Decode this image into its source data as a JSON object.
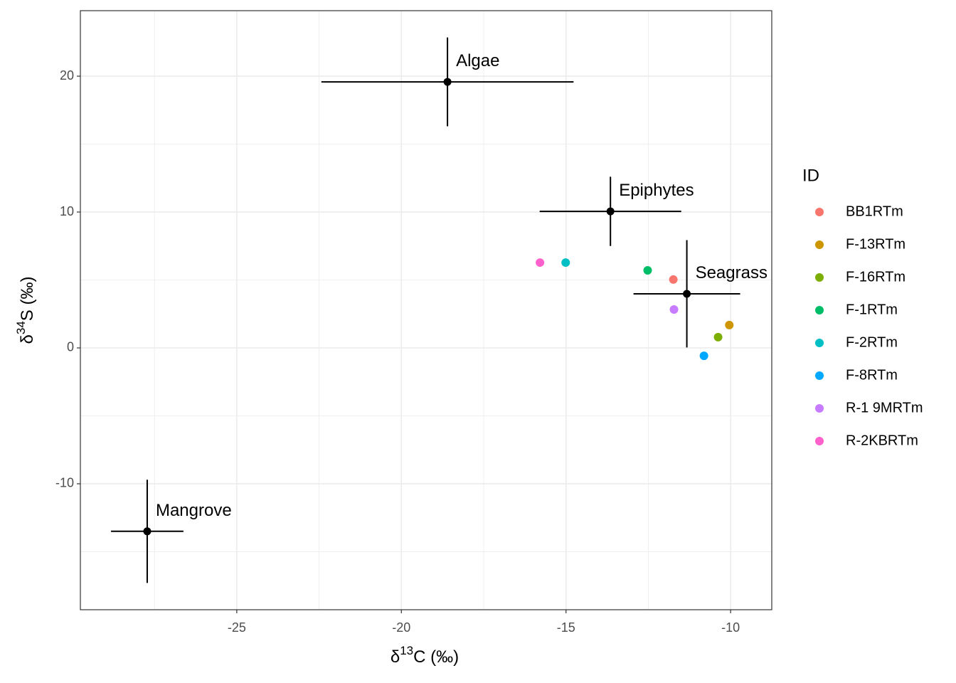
{
  "chart_data": {
    "type": "scatter",
    "xlabel": {
      "prefix": "δ",
      "sup": "13",
      "suffix": "C (‰)"
    },
    "ylabel": {
      "prefix": "δ",
      "sup": "34",
      "suffix": "S (‰)"
    },
    "xlim": [
      -29.75,
      -8.75
    ],
    "ylim": [
      -19.27,
      24.82
    ],
    "xticks": [
      -25,
      -20,
      -15,
      -10
    ],
    "yticks": [
      -10,
      0,
      10,
      20
    ],
    "grid": true,
    "legend_title": "ID",
    "legend_position": "right",
    "sources": {
      "color": "#000000",
      "labels": [
        "Algae",
        "Epiphytes",
        "Seagrass",
        "Mangrove"
      ],
      "x": [
        -18.6,
        -13.65,
        -11.33,
        -27.72
      ],
      "y": [
        19.58,
        10.05,
        3.98,
        -13.5
      ],
      "xerr": [
        3.83,
        2.15,
        1.62,
        1.1
      ],
      "yerr": [
        3.27,
        2.55,
        3.95,
        3.8
      ]
    },
    "series": [
      {
        "name": "BB1RTm",
        "color": "#F8766D",
        "x": [
          -11.74
        ],
        "y": [
          5.03
        ]
      },
      {
        "name": "F-13RTm",
        "color": "#CD9600",
        "x": [
          -10.04
        ],
        "y": [
          1.68
        ]
      },
      {
        "name": "F-16RTm",
        "color": "#7CAE00",
        "x": [
          -10.38
        ],
        "y": [
          0.79
        ]
      },
      {
        "name": "F-1RTm",
        "color": "#00BE67",
        "x": [
          -12.52
        ],
        "y": [
          5.71
        ]
      },
      {
        "name": "F-2RTm",
        "color": "#00BFC4",
        "x": [
          -15.01
        ],
        "y": [
          6.28
        ]
      },
      {
        "name": "F-8RTm",
        "color": "#00A9FF",
        "x": [
          -10.81
        ],
        "y": [
          -0.58
        ]
      },
      {
        "name": "R-1 9MRTm",
        "color": "#C77CFF",
        "x": [
          -11.72
        ],
        "y": [
          2.83
        ]
      },
      {
        "name": "R-2KBRTm",
        "color": "#FF61CC",
        "x": [
          -15.79
        ],
        "y": [
          6.28
        ]
      }
    ]
  }
}
